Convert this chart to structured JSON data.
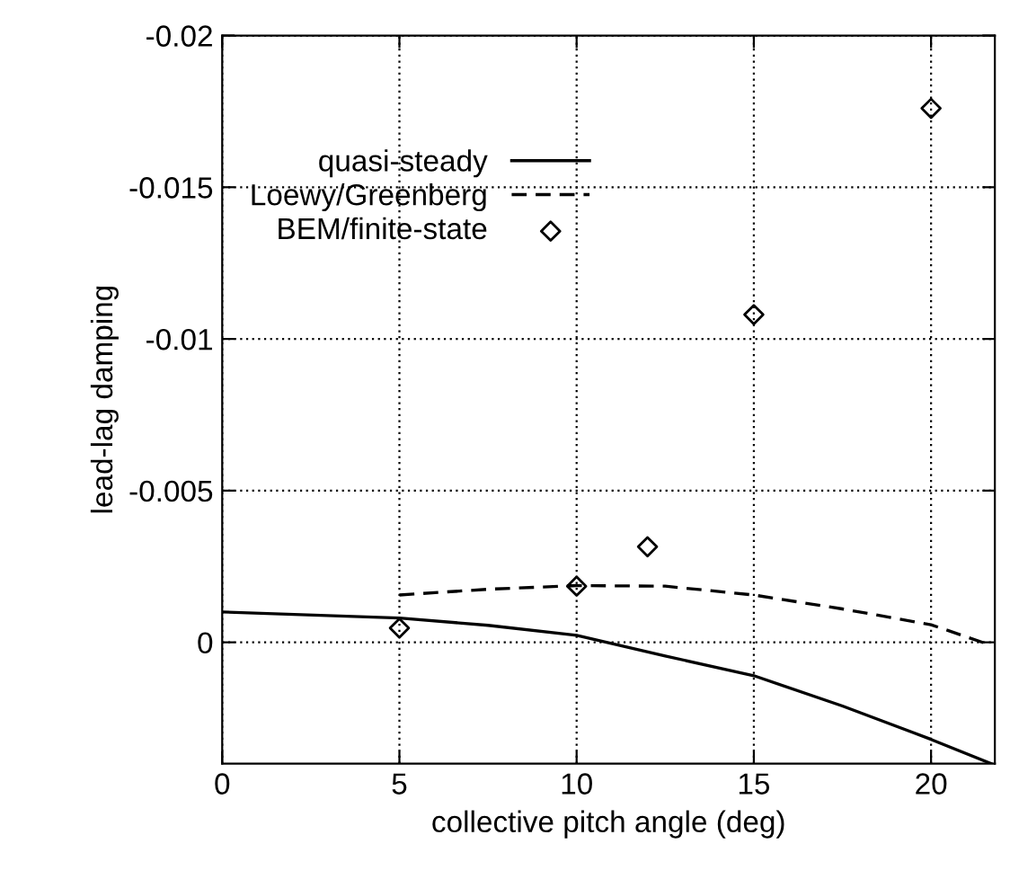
{
  "chart_data": {
    "type": "line",
    "xlabel": "collective pitch angle (deg)",
    "ylabel": "lead-lag damping",
    "xlim": [
      0,
      21.8
    ],
    "xticks": [
      0,
      5,
      10,
      15,
      20
    ],
    "ylim": [
      0.004,
      -0.02
    ],
    "yticks": [
      -0.02,
      -0.015,
      -0.01,
      -0.005,
      0
    ],
    "grid": true,
    "legend": "top left",
    "series": [
      {
        "name": "quasi-steady",
        "color": "#000000",
        "line_style": "solid",
        "marker": "none",
        "x": [
          0,
          5,
          7.5,
          10,
          12.5,
          15,
          17.5,
          20,
          21.7
        ],
        "values": [
          -0.001,
          -0.0008,
          -0.00056,
          -0.00023,
          0.00045,
          0.0011,
          0.0021,
          0.0032,
          0.004
        ]
      },
      {
        "name": "Loewy/Greenberg",
        "color": "#000000",
        "line_style": "dashed",
        "marker": "none",
        "x": [
          5,
          7.5,
          10,
          12.5,
          15,
          17.5,
          20,
          21.7
        ],
        "values": [
          -0.00156,
          -0.00175,
          -0.00187,
          -0.00185,
          -0.00156,
          -0.0011,
          -0.00058,
          0.0001
        ]
      },
      {
        "name": "BEM/finite-state",
        "type": "scatter",
        "color": "#000000",
        "marker": "diamond",
        "x": [
          5,
          10,
          12,
          15,
          20
        ],
        "values": [
          -0.00047,
          -0.00185,
          -0.00315,
          -0.0108,
          -0.0176
        ]
      }
    ]
  }
}
